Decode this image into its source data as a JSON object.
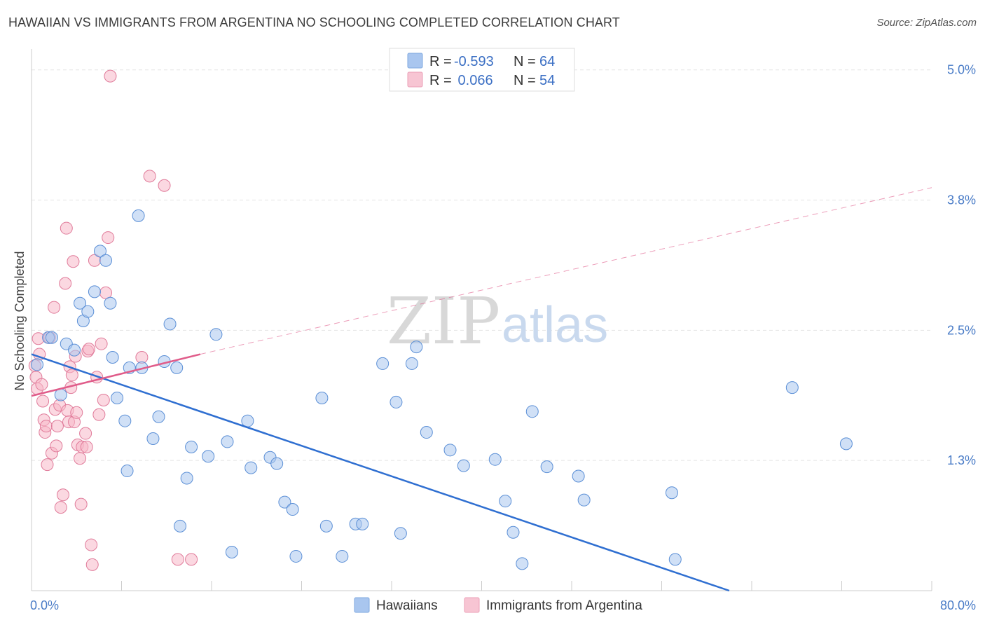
{
  "header": {
    "title": "HAWAIIAN VS IMMIGRANTS FROM ARGENTINA NO SCHOOLING COMPLETED CORRELATION CHART",
    "source": "Source: ZipAtlas.com"
  },
  "watermark": {
    "zip": "ZIP",
    "atlas": "atlas"
  },
  "legend": {
    "rows": [
      {
        "r_label": "R =",
        "r_value": "-0.593",
        "n_label": "N =",
        "n_value": "64",
        "color": "#a9c6ef"
      },
      {
        "r_label": "R =",
        "r_value": " 0.066",
        "n_label": "N =",
        "n_value": "54",
        "color": "#f7b8c9"
      }
    ]
  },
  "bottom_legend": [
    "Hawaiians",
    "Immigrants from Argentina"
  ],
  "chart_data": {
    "type": "scatter",
    "title": "HAWAIIAN VS IMMIGRANTS FROM ARGENTINA NO SCHOOLING COMPLETED CORRELATION CHART",
    "ylabel": "No Schooling Completed",
    "xlabel": "",
    "x_tick_labels": [
      "0.0%",
      "80.0%"
    ],
    "y_tick_labels": [
      "1.3%",
      "2.5%",
      "3.8%",
      "5.0%"
    ],
    "y_ticks": [
      1.25,
      2.5,
      3.75,
      5.0
    ],
    "xlim": [
      0,
      80
    ],
    "ylim": [
      0,
      5.2
    ],
    "grid": true,
    "series": [
      {
        "name": "Hawaiians",
        "color": "#a9c6ef",
        "stroke": "#5b8fd6",
        "points": [
          [
            0.5,
            2.17
          ],
          [
            1.5,
            2.43
          ],
          [
            1.8,
            2.43
          ],
          [
            2.6,
            1.88
          ],
          [
            3.1,
            2.37
          ],
          [
            3.8,
            2.31
          ],
          [
            4.3,
            2.76
          ],
          [
            4.6,
            2.59
          ],
          [
            5.0,
            2.68
          ],
          [
            5.6,
            2.87
          ],
          [
            6.1,
            3.26
          ],
          [
            6.6,
            3.17
          ],
          [
            7.0,
            2.76
          ],
          [
            7.2,
            2.24
          ],
          [
            8.5,
            1.15
          ],
          [
            8.3,
            1.63
          ],
          [
            7.6,
            1.85
          ],
          [
            8.7,
            2.14
          ],
          [
            9.5,
            3.6
          ],
          [
            9.8,
            2.14
          ],
          [
            10.8,
            1.46
          ],
          [
            11.3,
            1.67
          ],
          [
            11.8,
            2.2
          ],
          [
            12.3,
            2.56
          ],
          [
            12.9,
            2.14
          ],
          [
            13.2,
            0.62
          ],
          [
            13.8,
            1.08
          ],
          [
            14.2,
            1.38
          ],
          [
            15.7,
            1.29
          ],
          [
            16.4,
            2.46
          ],
          [
            17.4,
            1.43
          ],
          [
            17.8,
            0.37
          ],
          [
            19.2,
            1.63
          ],
          [
            19.5,
            1.18
          ],
          [
            21.2,
            1.28
          ],
          [
            21.8,
            1.22
          ],
          [
            22.5,
            0.85
          ],
          [
            23.2,
            0.78
          ],
          [
            23.5,
            0.33
          ],
          [
            25.8,
            1.85
          ],
          [
            26.2,
            0.62
          ],
          [
            27.6,
            0.33
          ],
          [
            28.8,
            0.64
          ],
          [
            29.4,
            0.64
          ],
          [
            31.2,
            2.18
          ],
          [
            32.4,
            1.81
          ],
          [
            32.8,
            0.55
          ],
          [
            33.8,
            2.18
          ],
          [
            34.2,
            2.34
          ],
          [
            35.1,
            1.52
          ],
          [
            37.2,
            1.35
          ],
          [
            38.4,
            1.2
          ],
          [
            41.2,
            1.26
          ],
          [
            42.1,
            0.86
          ],
          [
            42.8,
            0.56
          ],
          [
            43.6,
            0.26
          ],
          [
            44.5,
            1.72
          ],
          [
            45.8,
            1.19
          ],
          [
            48.6,
            1.1
          ],
          [
            49.1,
            0.87
          ],
          [
            56.9,
            0.94
          ],
          [
            57.2,
            0.3
          ],
          [
            72.4,
            1.41
          ],
          [
            67.6,
            1.95
          ]
        ]
      },
      {
        "name": "Immigrants from Argentina",
        "color": "#f7b8c9",
        "stroke": "#e07b9a",
        "points": [
          [
            0.3,
            2.16
          ],
          [
            0.4,
            2.05
          ],
          [
            0.5,
            1.94
          ],
          [
            0.6,
            2.42
          ],
          [
            0.7,
            2.27
          ],
          [
            0.9,
            1.98
          ],
          [
            1.0,
            1.82
          ],
          [
            1.1,
            1.64
          ],
          [
            1.2,
            1.52
          ],
          [
            1.3,
            1.58
          ],
          [
            1.4,
            1.21
          ],
          [
            1.6,
            2.43
          ],
          [
            1.8,
            1.32
          ],
          [
            2.0,
            2.72
          ],
          [
            2.1,
            1.74
          ],
          [
            2.2,
            1.39
          ],
          [
            2.3,
            1.58
          ],
          [
            2.5,
            1.78
          ],
          [
            2.6,
            0.8
          ],
          [
            2.8,
            0.92
          ],
          [
            3.0,
            2.95
          ],
          [
            3.1,
            3.48
          ],
          [
            3.2,
            1.73
          ],
          [
            3.3,
            1.62
          ],
          [
            3.4,
            2.15
          ],
          [
            3.5,
            1.95
          ],
          [
            3.7,
            3.16
          ],
          [
            3.8,
            1.62
          ],
          [
            3.9,
            2.25
          ],
          [
            4.0,
            1.71
          ],
          [
            4.1,
            1.4
          ],
          [
            4.3,
            1.27
          ],
          [
            4.4,
            0.83
          ],
          [
            4.5,
            1.38
          ],
          [
            4.8,
            1.51
          ],
          [
            4.9,
            1.38
          ],
          [
            5.0,
            2.3
          ],
          [
            5.1,
            2.32
          ],
          [
            5.3,
            0.44
          ],
          [
            5.4,
            0.25
          ],
          [
            5.6,
            3.17
          ],
          [
            5.8,
            2.05
          ],
          [
            6.0,
            1.69
          ],
          [
            6.2,
            2.37
          ],
          [
            6.4,
            1.83
          ],
          [
            6.6,
            2.86
          ],
          [
            6.8,
            3.39
          ],
          [
            7.0,
            4.94
          ],
          [
            9.8,
            2.24
          ],
          [
            10.5,
            3.98
          ],
          [
            11.8,
            3.89
          ],
          [
            13.0,
            0.3
          ],
          [
            14.2,
            0.3
          ],
          [
            3.6,
            2.07
          ]
        ]
      }
    ],
    "trendlines": [
      {
        "series": "Hawaiians",
        "from": [
          0,
          2.27
        ],
        "to": [
          62,
          0.0
        ],
        "style": "solid"
      },
      {
        "series": "Immigrants from Argentina",
        "from": [
          0,
          1.87
        ],
        "to": [
          15,
          2.27
        ],
        "style": "solid"
      },
      {
        "series": "Immigrants from Argentina",
        "from": [
          15,
          2.27
        ],
        "to": [
          80,
          3.87
        ],
        "style": "dashed"
      }
    ],
    "legend_position": "top-center"
  }
}
